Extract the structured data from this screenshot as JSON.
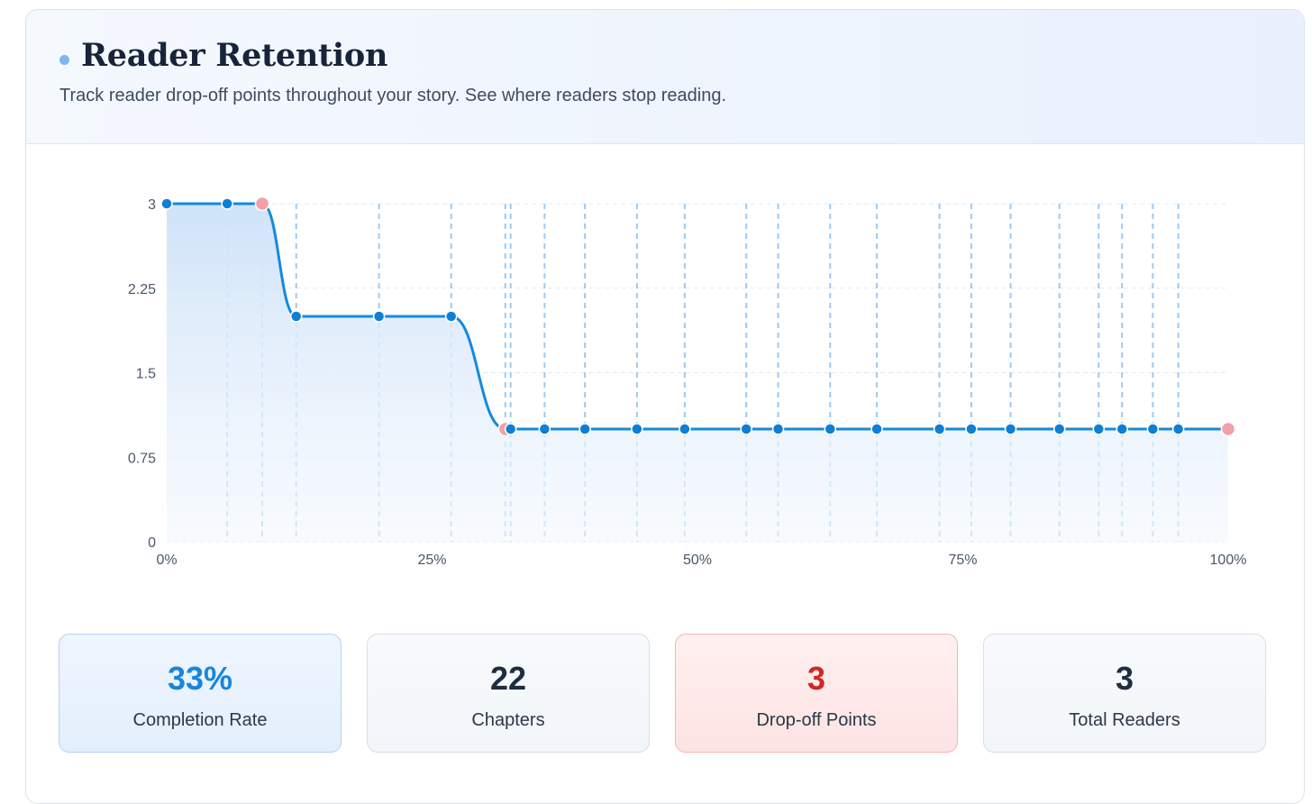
{
  "header": {
    "title": "Reader Retention",
    "subtitle": "Track reader drop-off points throughout your story. See where readers stop reading."
  },
  "colors": {
    "line": "#1589dd",
    "point": "#0f7fd6",
    "dropoff_point": "#f2a0a8",
    "gridline": "#9ccaf2",
    "completion": "#1786dc",
    "dropoff": "#d42525"
  },
  "chart_data": {
    "type": "area",
    "title": "",
    "xlabel": "",
    "ylabel": "",
    "x_unit": "%",
    "xlim": [
      0,
      100
    ],
    "ylim": [
      0,
      3
    ],
    "x_ticks": [
      0,
      25,
      50,
      75,
      100
    ],
    "x_tick_labels": [
      "0%",
      "25%",
      "50%",
      "75%",
      "100%"
    ],
    "y_ticks": [
      0,
      0.75,
      1.5,
      2.25,
      3
    ],
    "y_tick_labels": [
      "0",
      "0.75",
      "1.5",
      "2.25",
      "3"
    ],
    "grid": true,
    "series": [
      {
        "values": [
          {
            "x": 0,
            "y": 3
          },
          {
            "x": 5.7,
            "y": 3
          },
          {
            "x": 9.0,
            "y": 3,
            "dropoff": true
          },
          {
            "x": 12.2,
            "y": 2
          },
          {
            "x": 20.0,
            "y": 2
          },
          {
            "x": 26.8,
            "y": 2
          },
          {
            "x": 31.9,
            "y": 1,
            "dropoff": true
          },
          {
            "x": 32.4,
            "y": 1
          },
          {
            "x": 35.6,
            "y": 1
          },
          {
            "x": 39.4,
            "y": 1
          },
          {
            "x": 44.3,
            "y": 1
          },
          {
            "x": 48.8,
            "y": 1
          },
          {
            "x": 54.6,
            "y": 1
          },
          {
            "x": 57.6,
            "y": 1
          },
          {
            "x": 62.5,
            "y": 1
          },
          {
            "x": 66.9,
            "y": 1
          },
          {
            "x": 72.8,
            "y": 1
          },
          {
            "x": 75.8,
            "y": 1
          },
          {
            "x": 79.5,
            "y": 1
          },
          {
            "x": 84.1,
            "y": 1
          },
          {
            "x": 87.8,
            "y": 1
          },
          {
            "x": 90.0,
            "y": 1
          },
          {
            "x": 92.9,
            "y": 1
          },
          {
            "x": 95.3,
            "y": 1
          },
          {
            "x": 100,
            "y": 1,
            "dropoff": true
          }
        ]
      }
    ]
  },
  "stats": [
    {
      "key": "completion-rate",
      "value": "33%",
      "label": "Completion Rate",
      "style": "blue"
    },
    {
      "key": "chapters",
      "value": "22",
      "label": "Chapters",
      "style": "plain"
    },
    {
      "key": "drop-off-points",
      "value": "3",
      "label": "Drop-off Points",
      "style": "red"
    },
    {
      "key": "total-readers",
      "value": "3",
      "label": "Total Readers",
      "style": "plain"
    }
  ]
}
